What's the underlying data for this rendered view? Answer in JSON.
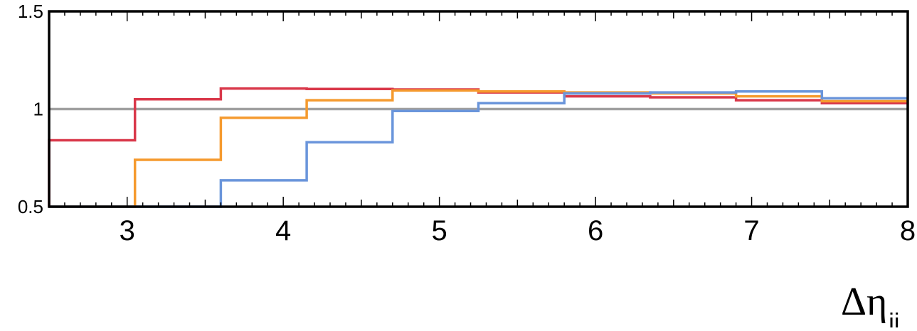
{
  "chart_data": {
    "type": "line",
    "step": true,
    "title": "",
    "xlabel_main": "Δη",
    "xlabel_sub": "jj",
    "ylabel": "",
    "xlim": [
      2.5,
      8
    ],
    "ylim": [
      0.5,
      1.5
    ],
    "x_ticks": [
      "3",
      "4",
      "5",
      "6",
      "7",
      "8"
    ],
    "y_ticks": [
      "0.5",
      "1",
      "1.5"
    ],
    "grid": false,
    "legend": "none",
    "reference_line": {
      "y": 1,
      "color": "#a0a0a0"
    },
    "bin_edges": [
      2.5,
      3.05,
      3.6,
      4.15,
      4.7,
      5.25,
      5.8,
      6.35,
      6.9,
      7.45,
      8.0
    ],
    "series": [
      {
        "color": "#d9384a",
        "values": [
          0.84,
          1.05,
          1.105,
          1.103,
          1.1,
          1.085,
          1.065,
          1.06,
          1.045,
          1.03
        ]
      },
      {
        "color": "#f59a2e",
        "values": [
          0.5,
          0.74,
          0.955,
          1.045,
          1.095,
          1.09,
          1.085,
          1.08,
          1.065,
          1.04
        ]
      },
      {
        "color": "#6a95db",
        "values": [
          0.5,
          0.5,
          0.635,
          0.83,
          0.99,
          1.03,
          1.08,
          1.085,
          1.09,
          1.055
        ]
      }
    ]
  }
}
